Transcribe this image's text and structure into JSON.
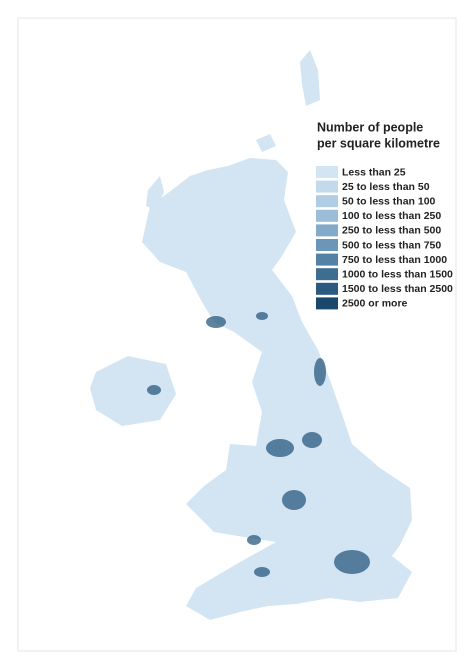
{
  "legend": {
    "title": [
      "Number of people",
      "per square kilometre"
    ],
    "entries": [
      {
        "label": "Less than 25",
        "color": "#d3e5f3"
      },
      {
        "label": "25 to less than 50",
        "color": "#c3daed"
      },
      {
        "label": "50 to less than 100",
        "color": "#b0cde3"
      },
      {
        "label": "100 to less than 250",
        "color": "#9bbdd7"
      },
      {
        "label": "250 to less than 500",
        "color": "#84aaca"
      },
      {
        "label": "500 to less than 750",
        "color": "#6c96b8"
      },
      {
        "label": "750 to less than 1000",
        "color": "#5482a6"
      },
      {
        "label": "1000 to less than 1500",
        "color": "#3e6d92"
      },
      {
        "label": "1500 to less than 2500",
        "color": "#2a5a7f"
      },
      {
        "label": "2500 or more",
        "color": "#1a486c"
      }
    ]
  }
}
